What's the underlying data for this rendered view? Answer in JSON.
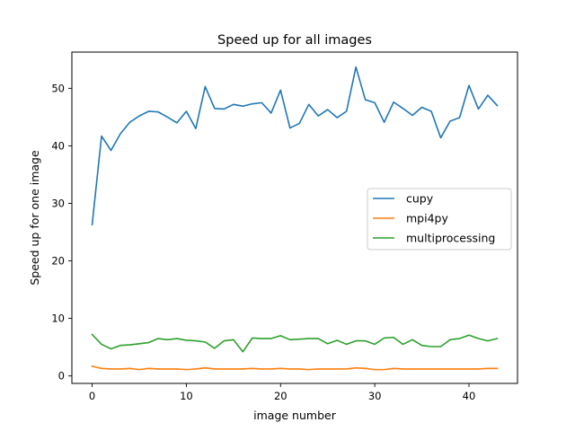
{
  "chart_data": {
    "type": "line",
    "title": "Speed up for all images",
    "xlabel": "image number",
    "ylabel": "Speed up for one image",
    "xlim": [
      -2.15,
      45.15
    ],
    "ylim": [
      -1.3,
      56.3
    ],
    "xticks": [
      0,
      10,
      20,
      30,
      40
    ],
    "yticks": [
      0,
      10,
      20,
      30,
      40,
      50
    ],
    "grid": false,
    "legend_position": "center-right",
    "x": [
      0,
      1,
      2,
      3,
      4,
      5,
      6,
      7,
      8,
      9,
      10,
      11,
      12,
      13,
      14,
      15,
      16,
      17,
      18,
      19,
      20,
      21,
      22,
      23,
      24,
      25,
      26,
      27,
      28,
      29,
      30,
      31,
      32,
      33,
      34,
      35,
      36,
      37,
      38,
      39,
      40,
      41,
      42,
      43
    ],
    "series": [
      {
        "name": "cupy",
        "color": "#1f77b4",
        "values": [
          26.3,
          41.7,
          39.2,
          42.1,
          44.1,
          45.2,
          46.0,
          45.9,
          45.0,
          44.0,
          46.0,
          43.0,
          50.3,
          46.5,
          46.4,
          47.2,
          46.9,
          47.3,
          47.5,
          45.7,
          49.7,
          43.1,
          43.9,
          47.2,
          45.2,
          46.3,
          44.9,
          46.0,
          53.7,
          48.0,
          47.5,
          44.1,
          47.6,
          46.5,
          45.3,
          46.7,
          46.0,
          41.4,
          44.3,
          44.9,
          50.5,
          46.4,
          48.8,
          47.0
        ]
      },
      {
        "name": "mpi4py",
        "color": "#ff7f0e",
        "values": [
          1.7,
          1.3,
          1.2,
          1.2,
          1.3,
          1.1,
          1.3,
          1.2,
          1.2,
          1.2,
          1.1,
          1.2,
          1.4,
          1.2,
          1.2,
          1.2,
          1.2,
          1.3,
          1.2,
          1.2,
          1.3,
          1.2,
          1.2,
          1.1,
          1.2,
          1.2,
          1.2,
          1.2,
          1.4,
          1.3,
          1.1,
          1.1,
          1.3,
          1.2,
          1.2,
          1.2,
          1.2,
          1.2,
          1.2,
          1.2,
          1.2,
          1.2,
          1.3,
          1.3
        ]
      },
      {
        "name": "multiprocessing",
        "color": "#2ca02c",
        "values": [
          7.2,
          5.5,
          4.7,
          5.3,
          5.4,
          5.6,
          5.8,
          6.5,
          6.3,
          6.5,
          6.2,
          6.1,
          5.9,
          4.8,
          6.1,
          6.3,
          4.2,
          6.6,
          6.5,
          6.5,
          7.0,
          6.3,
          6.4,
          6.5,
          6.5,
          5.6,
          6.2,
          5.5,
          6.1,
          6.1,
          5.5,
          6.6,
          6.7,
          5.5,
          6.3,
          5.3,
          5.1,
          5.1,
          6.3,
          6.5,
          7.1,
          6.5,
          6.1,
          6.5
        ]
      }
    ]
  }
}
